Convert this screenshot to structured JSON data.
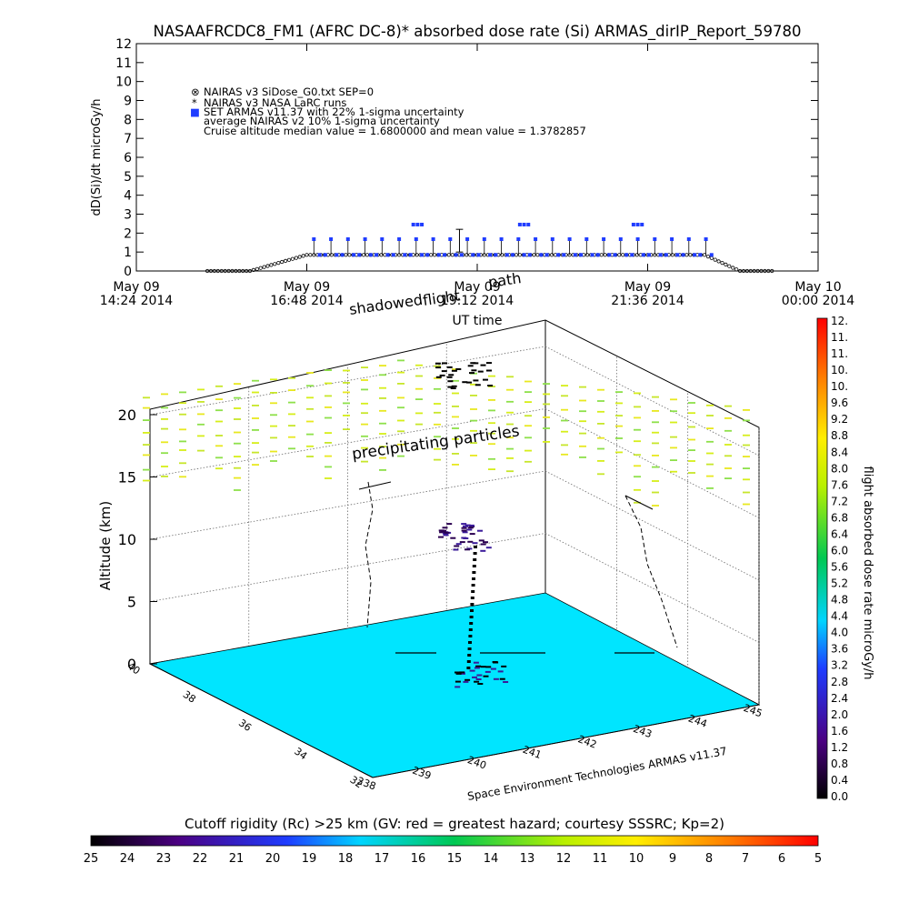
{
  "chart_data": [
    {
      "type": "scatter",
      "title": "NASAAFRCDC8_FM1 (AFRC DC-8)* absorbed dose rate (Si) ARMAS_dirIP_Report_59780",
      "ylabel": "dD(Si)/dt microGy/h",
      "xlabel": "UT time",
      "ylim": [
        0,
        12
      ],
      "yticks": [
        "0",
        "1",
        "2",
        "3",
        "4",
        "5",
        "6",
        "7",
        "8",
        "9",
        "10",
        "11",
        "12"
      ],
      "xticks": [
        {
          "date": "May 09",
          "time": "14:24 2014"
        },
        {
          "date": "May 09",
          "time": "16:48 2014"
        },
        {
          "date": "May 09",
          "time": "19:12 2014"
        },
        {
          "date": "May 09",
          "time": "21:36 2014"
        },
        {
          "date": "May 10",
          "time": "00:00 2014"
        }
      ],
      "legend": [
        {
          "symbol": "⊗",
          "label": "NAIRAS v3 SiDose_G0.txt SEP=0"
        },
        {
          "symbol": "*",
          "label": "NAIRAS v3 NASA LaRC runs"
        },
        {
          "symbol": "■",
          "label": "SET ARMAS v11.37 with 22% 1-sigma uncertainty"
        },
        {
          "symbol": "",
          "label": "average NAIRAS v2 10% 1-sigma uncertainty"
        },
        {
          "symbol": "",
          "label": "Cruise altitude median value = 1.6800000 and mean value = 1.3782857"
        }
      ],
      "legend_placement": "top-left",
      "series": [
        {
          "marker": "blue squares",
          "x_range_hours": [
            16.9,
            22.5
          ],
          "typical_value": 1.68,
          "peak_values": [
            2.45,
            2.45,
            2.45
          ]
        },
        {
          "marker": "black circles",
          "x_range_hours": [
            15.4,
            23.4
          ],
          "cruise_value": 0.85,
          "ground_value": 0.0
        }
      ]
    },
    {
      "type": "3d-scatter",
      "zlabel": "Altitude (km)",
      "zticks": [
        "0",
        "5",
        "10",
        "15",
        "20"
      ],
      "yticks": [
        "40",
        "38",
        "36",
        "34",
        "32"
      ],
      "xticks": [
        "238",
        "239",
        "240",
        "241",
        "242",
        "243",
        "244",
        "245"
      ],
      "annotations": [
        "shadowed flight path",
        "precipitating particles"
      ],
      "credit": "Space Environment Technologies ARMAS v11.37"
    }
  ],
  "labels": {
    "flight_path_word1": "shadowed",
    "flight_path_word2": "flight",
    "flight_path_word3": "path",
    "precip": "precipitating particles",
    "credit": "Space Environment Technologies ARMAS v11.37"
  },
  "dose_colorbar": {
    "label": "flight absorbed dose rate microGy/h",
    "ticks": [
      "0.0",
      "0.4",
      "0.8",
      "1.2",
      "1.6",
      "2.0",
      "2.4",
      "2.8",
      "3.2",
      "3.6",
      "4.0",
      "4.4",
      "4.8",
      "5.2",
      "5.6",
      "6.0",
      "6.4",
      "6.8",
      "7.2",
      "7.6",
      "8.0",
      "8.4",
      "8.8",
      "9.2",
      "9.6",
      "10.",
      "10.",
      "11.",
      "11.",
      "12."
    ]
  },
  "rc_colorbar": {
    "title": "Cutoff rigidity (Rc) >25 km (GV: red = greatest hazard; courtesy SSSRC; Kp=2)",
    "ticks": [
      "25",
      "24",
      "23",
      "22",
      "21",
      "20",
      "19",
      "18",
      "17",
      "16",
      "15",
      "14",
      "13",
      "12",
      "11",
      "10",
      "9",
      "8",
      "7",
      "6",
      "5"
    ]
  },
  "colors": {
    "armas": "#1f3cff",
    "nairas": "#000000",
    "ground": "#00e5ff",
    "grid": "#6a6a6a"
  }
}
